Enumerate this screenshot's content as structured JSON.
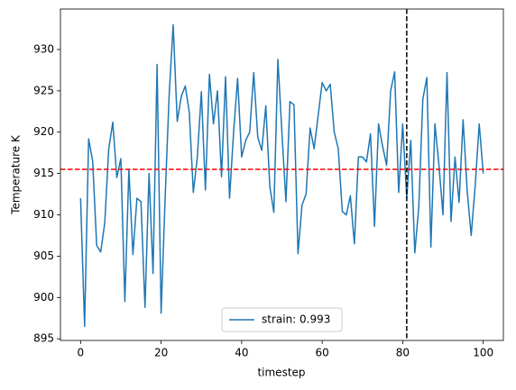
{
  "chart_data": {
    "type": "line",
    "xlabel": "timestep",
    "ylabel": "Temperature K",
    "x": [
      0,
      1,
      2,
      3,
      4,
      5,
      6,
      7,
      8,
      9,
      10,
      11,
      12,
      13,
      14,
      15,
      16,
      17,
      18,
      19,
      20,
      21,
      22,
      23,
      24,
      25,
      26,
      27,
      28,
      29,
      30,
      31,
      32,
      33,
      34,
      35,
      36,
      37,
      38,
      39,
      40,
      41,
      42,
      43,
      44,
      45,
      46,
      47,
      48,
      49,
      50,
      51,
      52,
      53,
      54,
      55,
      56,
      57,
      58,
      59,
      60,
      61,
      62,
      63,
      64,
      65,
      66,
      67,
      68,
      69,
      70,
      71,
      72,
      73,
      74,
      75,
      76,
      77,
      78,
      79,
      80,
      81,
      82,
      83,
      84,
      85,
      86,
      87,
      88,
      89,
      90,
      91,
      92,
      93,
      94,
      95,
      96,
      97,
      98,
      99,
      100
    ],
    "series": [
      {
        "name": "strain: 0.993",
        "color": "#1f77b4",
        "values": [
          912,
          896.5,
          919.2,
          916.5,
          906.3,
          905.5,
          909,
          918,
          921.2,
          914.5,
          916.8,
          899.5,
          915.5,
          905.2,
          912,
          911.6,
          898.8,
          915,
          902.9,
          928.2,
          898.1,
          912,
          924.5,
          933,
          921.3,
          924.3,
          925.6,
          922.4,
          912.7,
          917,
          924.9,
          913,
          927,
          921,
          925,
          914.6,
          926.7,
          912,
          920,
          926.5,
          917,
          919,
          920,
          927.2,
          919.4,
          917.8,
          923.2,
          913.4,
          910.3,
          928.8,
          920,
          911.6,
          923.7,
          923.3,
          905.3,
          911.2,
          912.5,
          920.5,
          918,
          922,
          926,
          925,
          925.8,
          920,
          918,
          910.4,
          910,
          912.3,
          906.5,
          917,
          917,
          916.4,
          919.8,
          908.6,
          921,
          918.3,
          916,
          925,
          927.3,
          912.7,
          921,
          912,
          919,
          905.4,
          911,
          924,
          926.6,
          906.1,
          921,
          916,
          910,
          927.2,
          909.2,
          917,
          911.5,
          921.5,
          913,
          907.5,
          913.5,
          921,
          915
        ]
      }
    ],
    "hlines": [
      {
        "value": 915.5,
        "color": "#ff0000"
      }
    ],
    "vlines": [
      {
        "value": 81,
        "color": "#000000"
      }
    ],
    "xlim": [
      -5,
      105
    ],
    "ylim": [
      894.8,
      934.9
    ],
    "xticks": [
      0,
      20,
      40,
      60,
      80,
      100
    ],
    "yticks": [
      895,
      900,
      905,
      910,
      915,
      920,
      925,
      930
    ],
    "legend": "lower center"
  }
}
